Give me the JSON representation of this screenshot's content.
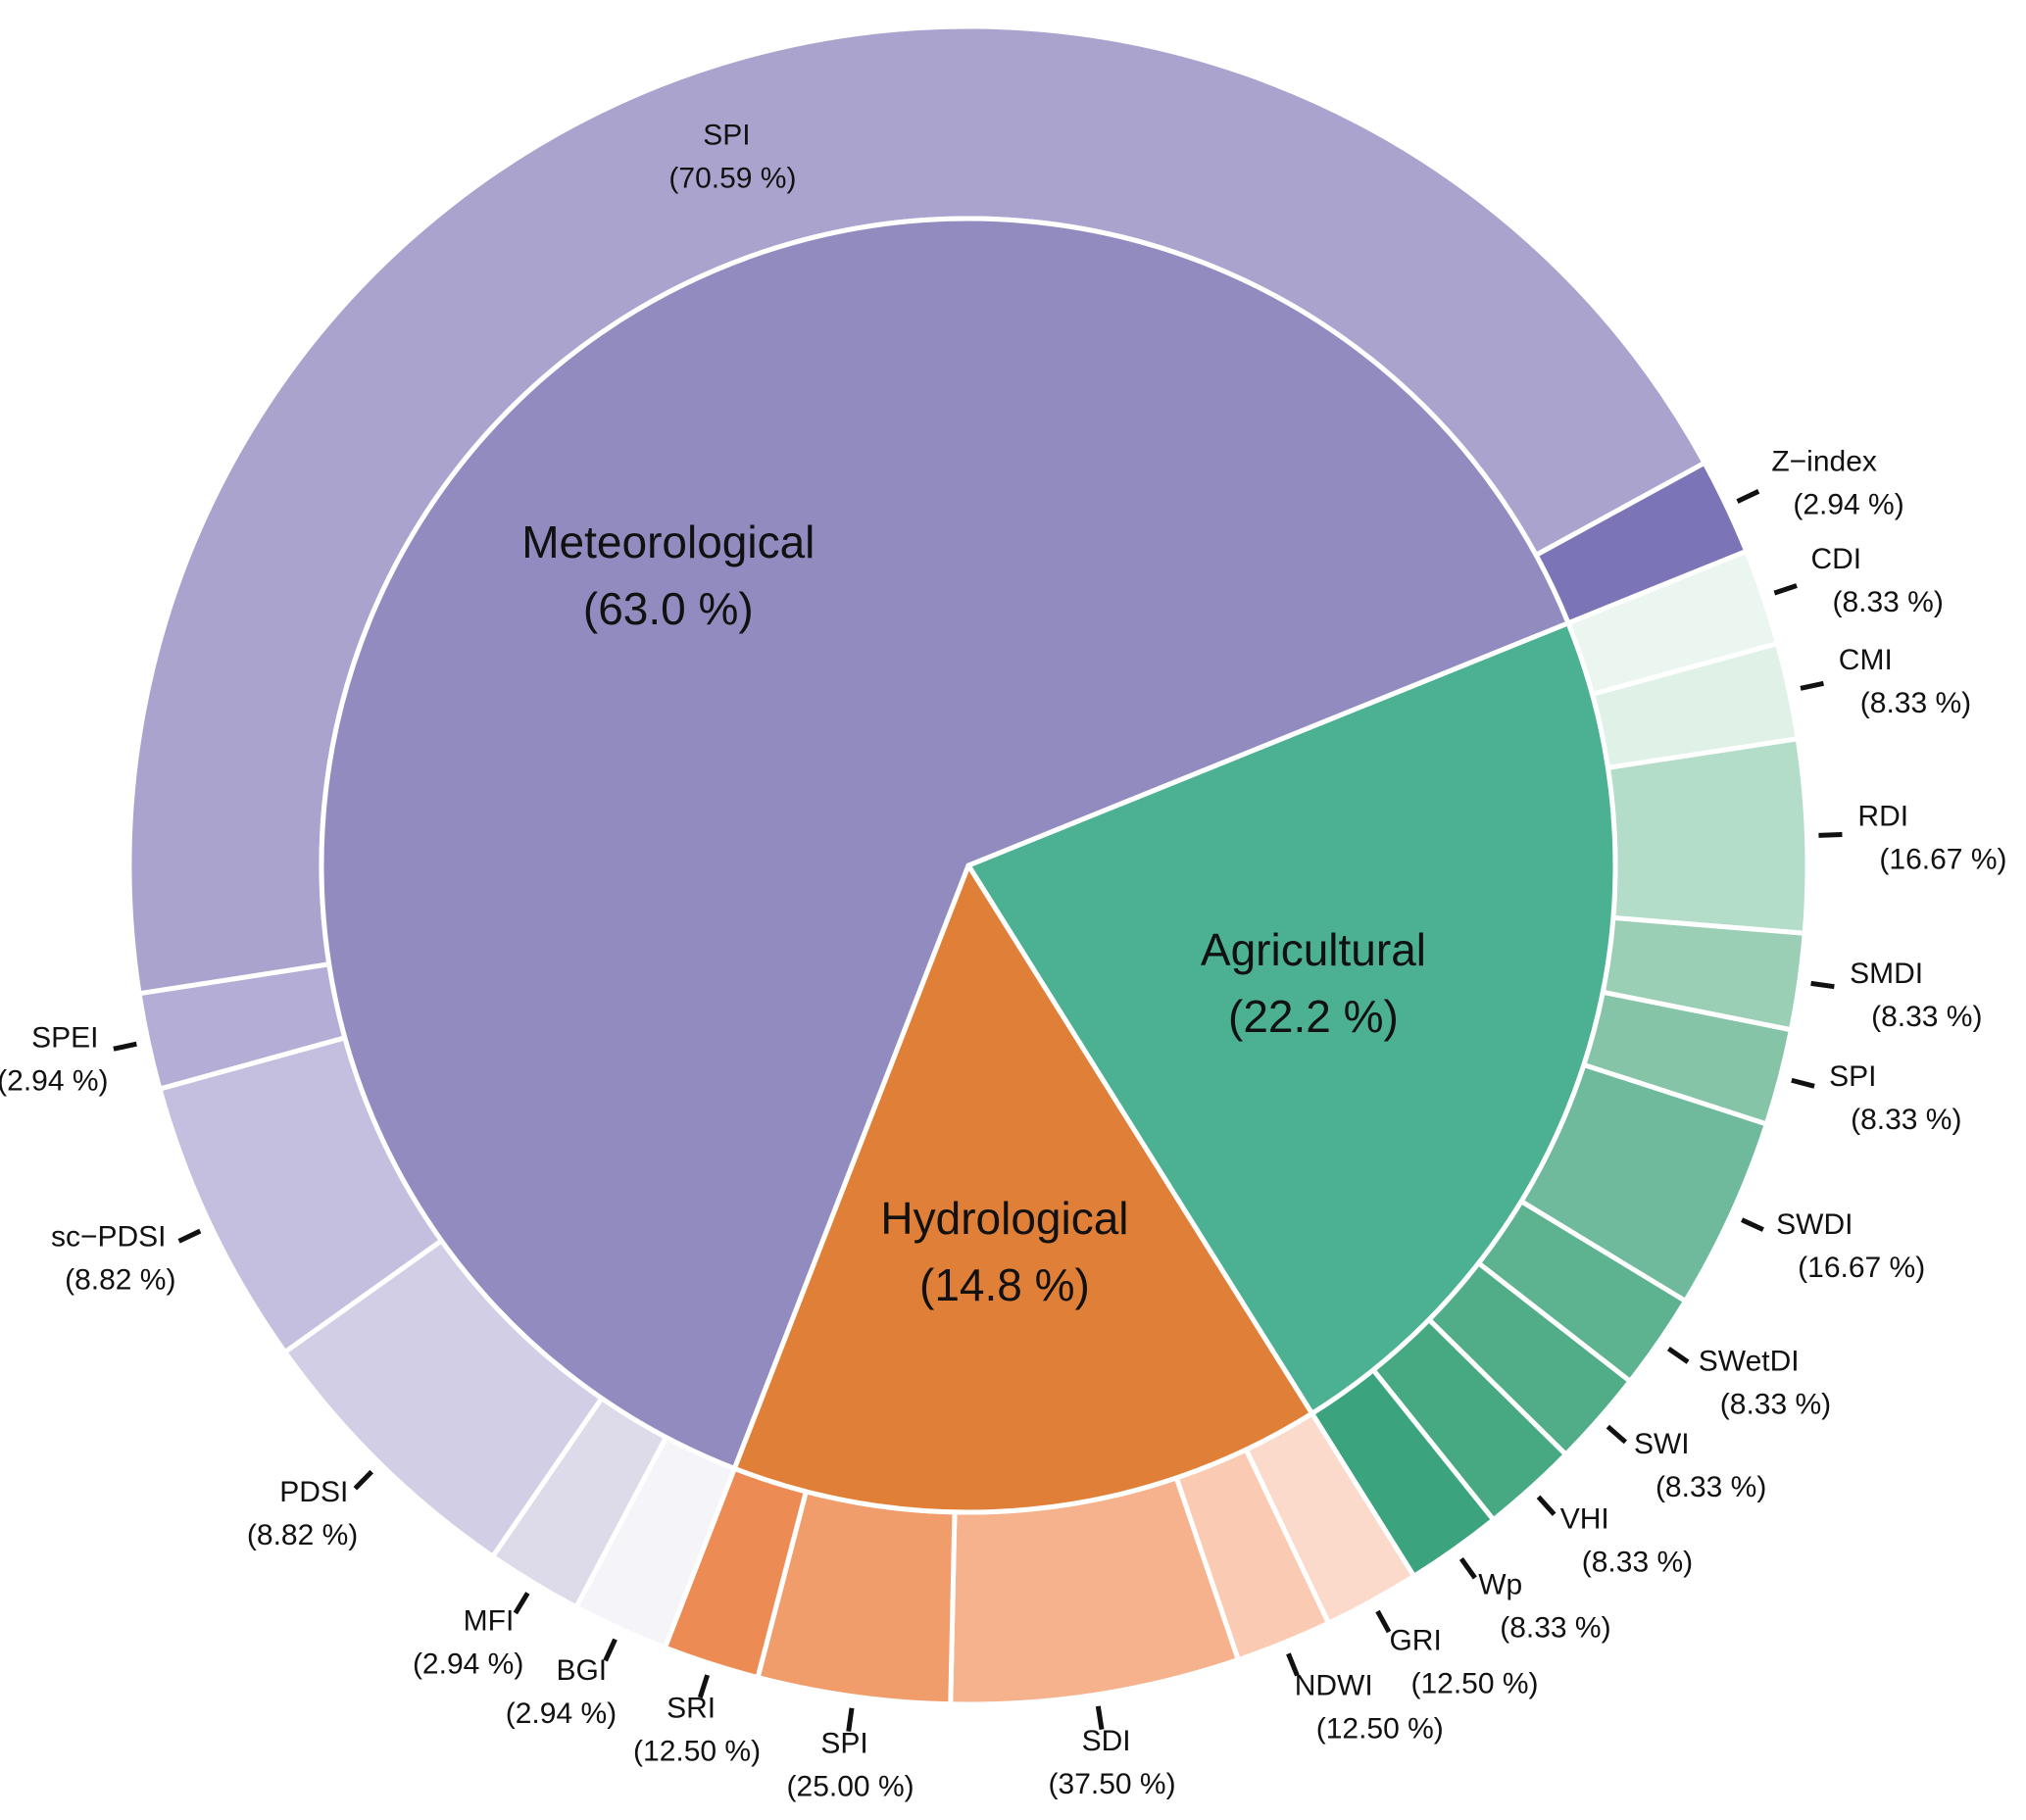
{
  "chart_data": {
    "type": "sunburst",
    "inner": [
      {
        "label": "Meteorological",
        "pct_label": "(63.0 %)",
        "value": 63.0,
        "color": "#918bc0"
      },
      {
        "label": "Agricultural",
        "pct_label": "(22.2 %)",
        "value": 22.2,
        "color": "#4cb193"
      },
      {
        "label": "Hydrological",
        "pct_label": "(14.8 %)",
        "value": 14.8,
        "color": "#e07f37"
      }
    ],
    "outer": {
      "Meteorological": [
        {
          "label": "SPI",
          "pct_label": "(70.59 %)",
          "value": 70.59,
          "color": "#aaa3ce"
        },
        {
          "label": "Z−index",
          "pct_label": "(2.94 %)",
          "value": 2.94,
          "color": "#7b74b6"
        },
        {
          "label": "BGI",
          "pct_label": "(2.94 %)",
          "value": 2.94,
          "color": "#f5f4f8"
        },
        {
          "label": "MFI",
          "pct_label": "(2.94 %)",
          "value": 2.94,
          "color": "#dddbea"
        },
        {
          "label": "PDSI",
          "pct_label": "(8.82 %)",
          "value": 8.82,
          "color": "#d2cee6"
        },
        {
          "label": "sc−PDSI",
          "pct_label": "(8.82 %)",
          "value": 8.82,
          "color": "#c4bfdf"
        },
        {
          "label": "SPEI",
          "pct_label": "(2.94 %)",
          "value": 2.94,
          "color": "#b4aed6"
        }
      ],
      "Agricultural": [
        {
          "label": "CDI",
          "pct_label": "(8.33 %)",
          "value": 8.33,
          "color": "#ebf6f0"
        },
        {
          "label": "CMI",
          "pct_label": "(8.33 %)",
          "value": 8.33,
          "color": "#e0f1e8"
        },
        {
          "label": "RDI",
          "pct_label": "(16.67 %)",
          "value": 16.67,
          "color": "#b3dcc9"
        },
        {
          "label": "SMDI",
          "pct_label": "(8.33 %)",
          "value": 8.33,
          "color": "#9bcfb5"
        },
        {
          "label": "SPI",
          "pct_label": "(8.33 %)",
          "value": 8.33,
          "color": "#86c4a8"
        },
        {
          "label": "SWDI",
          "pct_label": "(16.67 %)",
          "value": 16.67,
          "color": "#6fba9c"
        },
        {
          "label": "SWetDI",
          "pct_label": "(8.33 %)",
          "value": 8.33,
          "color": "#5db28f"
        },
        {
          "label": "SWI",
          "pct_label": "(8.33 %)",
          "value": 8.33,
          "color": "#50ad88"
        },
        {
          "label": "VHI",
          "pct_label": "(8.33 %)",
          "value": 8.33,
          "color": "#47a982"
        },
        {
          "label": "Wp",
          "pct_label": "(8.33 %)",
          "value": 8.33,
          "color": "#3ba47e"
        }
      ],
      "Hydrological": [
        {
          "label": "GRI",
          "pct_label": "(12.50 %)",
          "value": 12.5,
          "color": "#fcdacb"
        },
        {
          "label": "NDWI",
          "pct_label": "(12.50 %)",
          "value": 12.5,
          "color": "#facbb2"
        },
        {
          "label": "SDI",
          "pct_label": "(37.50 %)",
          "value": 37.5,
          "color": "#f6b28c"
        },
        {
          "label": "SPI",
          "pct_label": "(25.00 %)",
          "value": 25.0,
          "color": "#f19c6b"
        },
        {
          "label": "SRI",
          "pct_label": "(12.50 %)",
          "value": 12.5,
          "color": "#ec8c54"
        }
      ]
    }
  }
}
